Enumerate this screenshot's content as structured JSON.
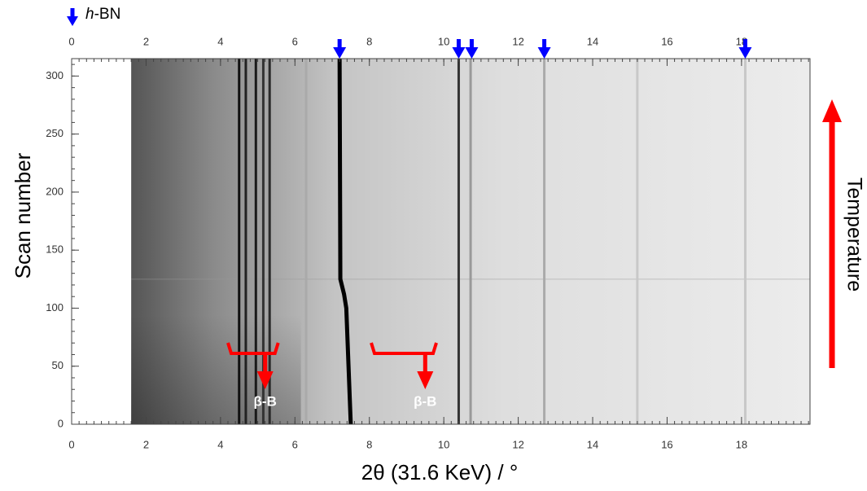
{
  "chart_data": {
    "type": "image",
    "x_label": "2θ (31.6 KeV) / °",
    "y_label": "Scan number",
    "side_label": "Temperature",
    "xlim": [
      0,
      19.84
    ],
    "ylim": [
      0,
      315
    ],
    "xticks": [
      0,
      2,
      4,
      6,
      8,
      10,
      12,
      14,
      16,
      18
    ],
    "yticks": [
      0,
      50,
      100,
      150,
      200,
      250,
      300
    ],
    "data_start_x": 1.6,
    "peaks": [
      {
        "x": 4.5,
        "color": "#111111"
      },
      {
        "x": 4.68,
        "color": "#222222"
      },
      {
        "x": 4.95,
        "color": "#1a1a1a"
      },
      {
        "x": 5.15,
        "color": "#333333"
      },
      {
        "x": 5.32,
        "color": "#2a2a2a"
      },
      {
        "x": 6.3,
        "color": "#aaaaaa"
      },
      {
        "x": 10.4,
        "color": "#333333"
      },
      {
        "x": 10.72,
        "color": "#999999"
      },
      {
        "x": 12.7,
        "color": "#aaaaaa"
      },
      {
        "x": 15.2,
        "color": "#c8c8c8"
      },
      {
        "x": 18.1,
        "color": "#c8c8c8"
      }
    ],
    "moving_peak": {
      "x": [
        7.5,
        7.38,
        7.32,
        7.22,
        7.2
      ],
      "y": [
        0,
        100,
        112,
        125,
        315
      ],
      "color": "#000000"
    },
    "markers": {
      "name": "h-BN",
      "color": "#0000ff",
      "x": [
        7.2,
        10.4,
        10.75,
        12.7,
        18.1
      ]
    },
    "annotations": [
      {
        "text": "β-B",
        "x": 5.2,
        "x_from": 4.2,
        "x_to": 5.55
      },
      {
        "text": "β-B",
        "x": 9.5,
        "x_from": 8.05,
        "x_to": 9.8
      }
    ]
  }
}
